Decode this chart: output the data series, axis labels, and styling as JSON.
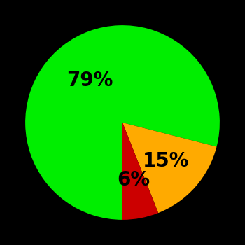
{
  "slices": [
    79,
    15,
    6
  ],
  "colors": [
    "#00ee00",
    "#ffaa00",
    "#cc0000"
  ],
  "labels": [
    "79%",
    "15%",
    "6%"
  ],
  "background_color": "#000000",
  "startangle": -90,
  "label_fontsize": 20,
  "label_color": "#000000",
  "label_fontweight": "bold",
  "label_radii": [
    0.55,
    0.6,
    0.6
  ]
}
